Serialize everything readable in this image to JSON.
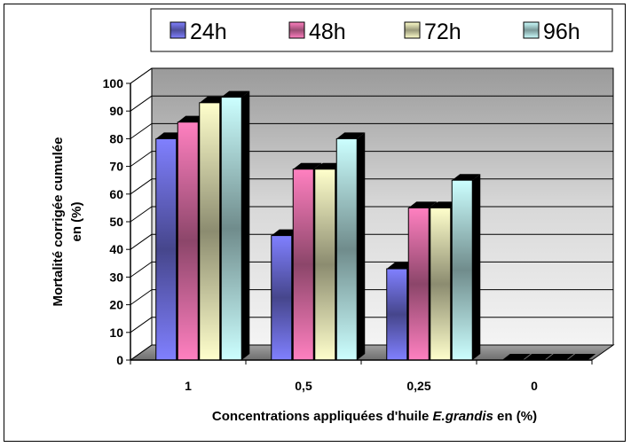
{
  "chart_data": {
    "type": "bar",
    "categories": [
      "1",
      "0,5",
      "0,25",
      "0"
    ],
    "series": [
      {
        "name": "24h",
        "values": [
          80,
          45,
          33,
          0
        ],
        "color": "#8080ff"
      },
      {
        "name": "48h",
        "values": [
          86,
          69,
          55,
          0
        ],
        "color": "#ff80c0"
      },
      {
        "name": "72h",
        "values": [
          93,
          69,
          55,
          0
        ],
        "color": "#ffffcc"
      },
      {
        "name": "96h",
        "values": [
          95,
          80,
          65,
          0
        ],
        "color": "#ccffff"
      }
    ],
    "ylim": [
      0,
      100
    ],
    "yticks": [
      "0",
      "10",
      "20",
      "30",
      "40",
      "50",
      "60",
      "70",
      "80",
      "90",
      "100"
    ],
    "ylabel_line1": "Mortalité corrigée cumulée",
    "ylabel_line2": "en (%)",
    "xlabel_prefix": "Concentrations appliquées d'huile ",
    "xlabel_italic": "E.grandis",
    "xlabel_suffix": " en (%)",
    "grid": true,
    "legend_position": "top",
    "wall_color": "#c0c0c0",
    "floor_color": "#808080"
  }
}
